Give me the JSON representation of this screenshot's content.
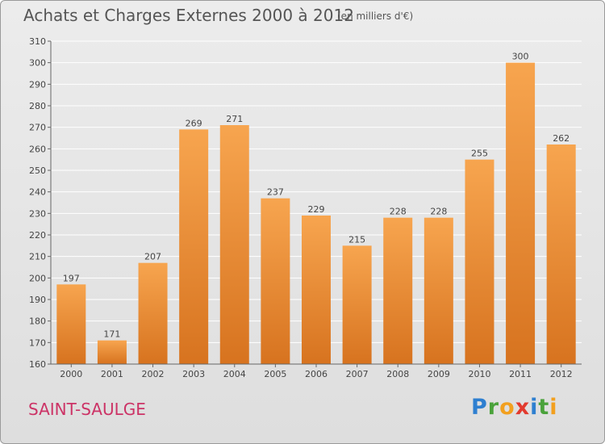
{
  "header": {
    "title": "Achats et Charges Externes 2000 à 2012",
    "subtitle": "(en milliers d'€)"
  },
  "footer": {
    "commune": "SAINT-SAULGE",
    "brand_letters": [
      {
        "char": "P",
        "color": "#2e7fd0"
      },
      {
        "char": "r",
        "color": "#4aa23b"
      },
      {
        "char": "o",
        "color": "#f2a01f"
      },
      {
        "char": "x",
        "color": "#e23a2e"
      },
      {
        "char": "i",
        "color": "#2e7fd0"
      },
      {
        "char": "t",
        "color": "#4aa23b"
      },
      {
        "char": "i",
        "color": "#f2a01f"
      }
    ]
  },
  "colors": {
    "bar_light": "#f7a54f",
    "bar_dark": "#d7731f",
    "grid": "#ffffff",
    "text": "#444444"
  },
  "chart_data": {
    "type": "bar",
    "categories": [
      "2000",
      "2001",
      "2002",
      "2003",
      "2004",
      "2005",
      "2006",
      "2007",
      "2008",
      "2009",
      "2010",
      "2011",
      "2012"
    ],
    "values": [
      197,
      171,
      207,
      269,
      271,
      237,
      229,
      215,
      228,
      228,
      255,
      300,
      262
    ],
    "title": "Achats et Charges Externes 2000 à 2012",
    "subtitle": "(en milliers d'€)",
    "ylim": [
      160,
      310
    ],
    "yticks": [
      160,
      170,
      180,
      190,
      200,
      210,
      220,
      230,
      240,
      250,
      260,
      270,
      280,
      290,
      300,
      310
    ],
    "grid": true,
    "data_labels": true
  }
}
